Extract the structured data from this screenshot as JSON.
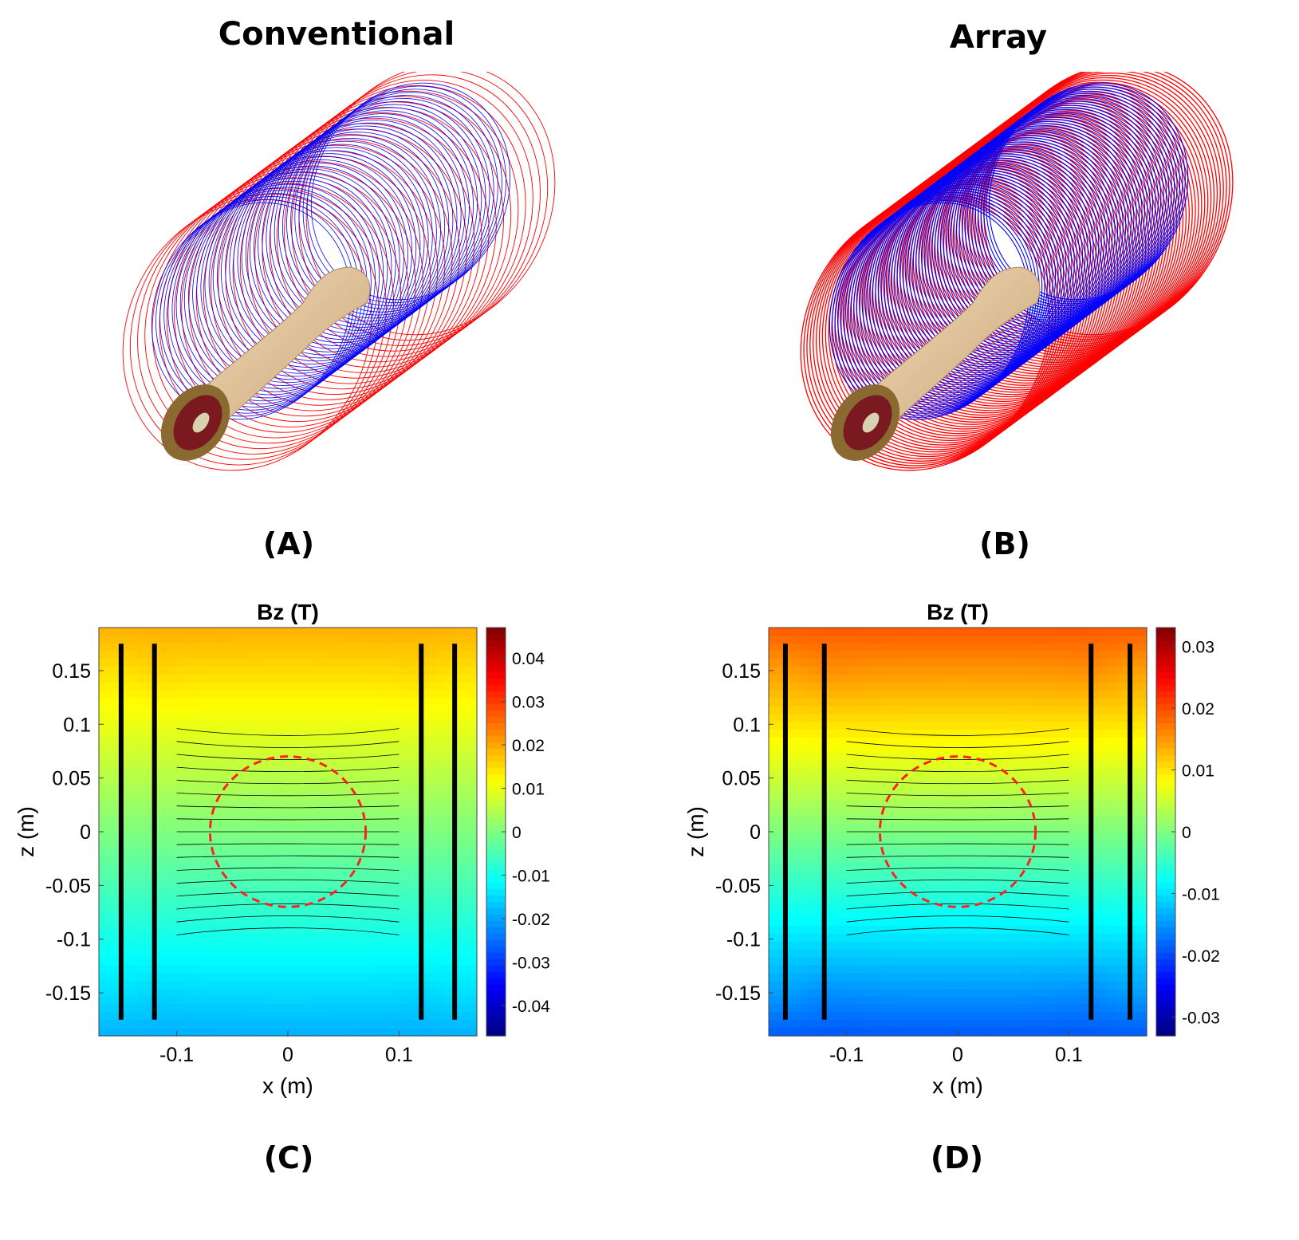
{
  "panels": {
    "a": {
      "label": "(A)",
      "title": "Conventional"
    },
    "b": {
      "label": "(B)",
      "title": "Array"
    },
    "c": {
      "label": "(C)"
    },
    "d": {
      "label": "(D)"
    }
  },
  "colors": {
    "outer_coil": "#ff0000",
    "inner_coil": "#0000ff",
    "arm": "#e8c9a0",
    "dsv_circle": "#ff2020"
  },
  "chart_data": [
    {
      "type": "heatmap",
      "panel": "C",
      "title": "Bz (T)",
      "xlabel": "x (m)",
      "ylabel": "z (m)",
      "xlim": [
        -0.17,
        0.17
      ],
      "ylim": [
        -0.19,
        0.19
      ],
      "xticks": [
        -0.1,
        0,
        0.1
      ],
      "xtick_labels": [
        "-0.1",
        "0",
        "0.1"
      ],
      "yticks": [
        0.15,
        0.1,
        0.05,
        0,
        -0.05,
        -0.1,
        -0.15
      ],
      "ytick_labels": [
        "0.15",
        "0.1",
        "0.05",
        "0",
        "-0.05",
        "-0.1",
        "-0.15"
      ],
      "colorbar": {
        "range": [
          -0.047,
          0.047
        ],
        "ticks": [
          0.04,
          0.03,
          0.02,
          0.01,
          0,
          -0.01,
          -0.02,
          -0.03,
          -0.04
        ],
        "tick_labels": [
          "0.04",
          "0.03",
          "0.02",
          "0.01",
          "0",
          "-0.01",
          "-0.02",
          "-0.03",
          "-0.04"
        ]
      },
      "dsv_circle": {
        "center": [
          0,
          0
        ],
        "radius": 0.07,
        "style": "dashed"
      }
    },
    {
      "type": "heatmap",
      "panel": "D",
      "title": "Bz (T)",
      "xlabel": "x (m)",
      "ylabel": "z (m)",
      "xlim": [
        -0.17,
        0.17
      ],
      "ylim": [
        -0.19,
        0.19
      ],
      "xticks": [
        -0.1,
        0,
        0.1
      ],
      "xtick_labels": [
        "-0.1",
        "0",
        "0.1"
      ],
      "yticks": [
        0.15,
        0.1,
        0.05,
        0,
        -0.05,
        -0.1,
        -0.15
      ],
      "ytick_labels": [
        "0.15",
        "0.1",
        "0.05",
        "0",
        "-0.05",
        "-0.1",
        "-0.15"
      ],
      "colorbar": {
        "range": [
          -0.033,
          0.033
        ],
        "ticks": [
          0.03,
          0.02,
          0.01,
          0,
          -0.01,
          -0.02,
          -0.03
        ],
        "tick_labels": [
          "0.03",
          "0.02",
          "0.01",
          "0",
          "-0.01",
          "-0.02",
          "-0.03"
        ]
      },
      "dsv_circle": {
        "center": [
          0,
          0
        ],
        "radius": 0.07,
        "style": "dashed"
      }
    }
  ]
}
